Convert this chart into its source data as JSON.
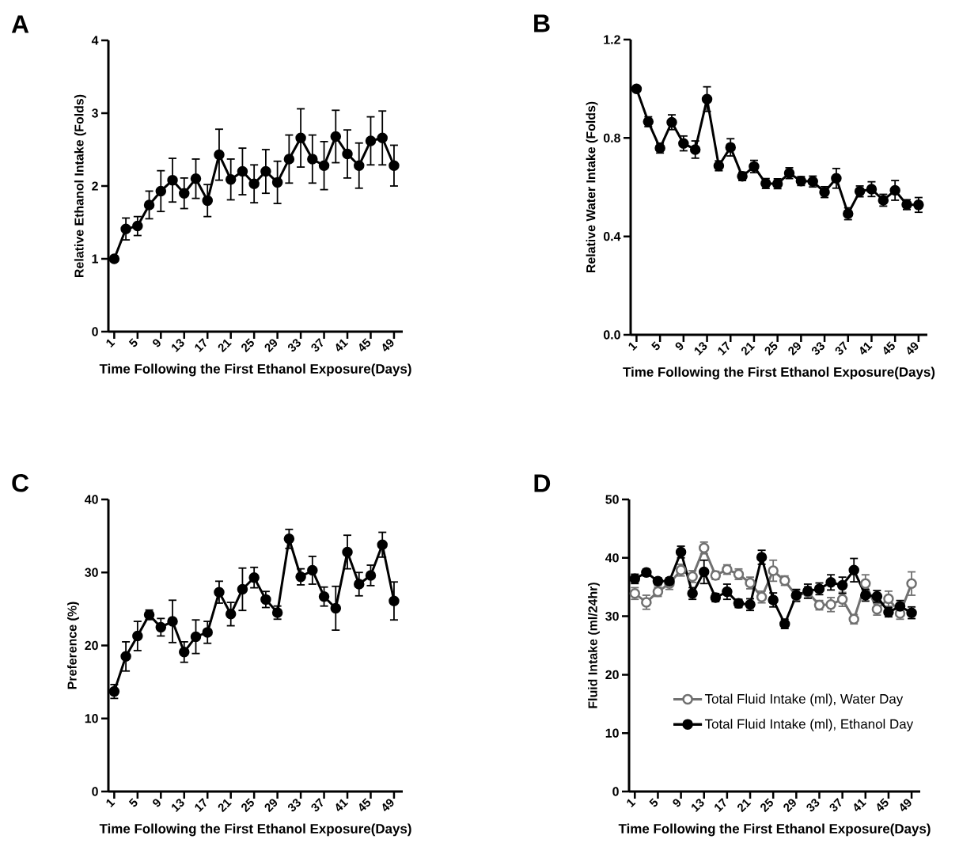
{
  "chart_data": [
    {
      "type": "line",
      "title": "A",
      "xlabel": "Time Following the First Ethanol Exposure(Days)",
      "ylabel": "Relative Ethanol Intake (Folds)",
      "x": [
        1,
        3,
        5,
        7,
        9,
        11,
        13,
        15,
        17,
        19,
        21,
        23,
        25,
        27,
        29,
        31,
        33,
        35,
        37,
        39,
        41,
        43,
        45,
        47,
        49
      ],
      "xlim": [
        0,
        50.5
      ],
      "xticks": [
        1,
        5,
        9,
        13,
        17,
        21,
        25,
        29,
        33,
        37,
        41,
        45,
        49
      ],
      "ylim": [
        0,
        4
      ],
      "yticks": [
        0,
        1,
        2,
        3,
        4
      ],
      "marker": "circle",
      "line_style": "solid",
      "series": [
        {
          "color": "#000000",
          "values": [
            1.0,
            1.41,
            1.45,
            1.74,
            1.93,
            2.08,
            1.9,
            2.1,
            1.8,
            2.43,
            2.09,
            2.2,
            2.03,
            2.2,
            2.05,
            2.37,
            2.66,
            2.37,
            2.28,
            2.68,
            2.44,
            2.28,
            2.62,
            2.66,
            2.28
          ],
          "errors": [
            null,
            0.15,
            0.13,
            0.19,
            0.28,
            0.3,
            0.21,
            0.27,
            0.22,
            0.35,
            0.28,
            0.32,
            0.26,
            0.3,
            0.29,
            0.33,
            0.4,
            0.33,
            0.33,
            0.36,
            0.33,
            0.31,
            0.33,
            0.37,
            0.28
          ]
        }
      ]
    },
    {
      "type": "line",
      "title": "B",
      "xlabel": "Time Following the First Ethanol Exposure(Days)",
      "ylabel": "Relative Water Intake (Folds)",
      "x": [
        1,
        3,
        5,
        7,
        9,
        11,
        13,
        15,
        17,
        19,
        21,
        23,
        25,
        27,
        29,
        31,
        33,
        35,
        37,
        39,
        41,
        43,
        45,
        47,
        49
      ],
      "xlim": [
        0,
        50.5
      ],
      "xticks": [
        1,
        5,
        9,
        13,
        17,
        21,
        25,
        29,
        33,
        37,
        41,
        45,
        49
      ],
      "ylim": [
        0,
        1.2
      ],
      "yticks": [
        {
          "value": 0,
          "label": "0.0"
        },
        {
          "value": 0.4,
          "label": "0.4"
        },
        {
          "value": 0.8,
          "label": "0.8"
        },
        {
          "value": 1.2,
          "label": "1.2"
        }
      ],
      "marker": "circle",
      "line_style": "solid",
      "series": [
        {
          "color": "#000000",
          "values": [
            1.0,
            0.866,
            0.759,
            0.864,
            0.778,
            0.753,
            0.958,
            0.687,
            0.762,
            0.644,
            0.684,
            0.615,
            0.614,
            0.657,
            0.625,
            0.623,
            0.58,
            0.636,
            0.492,
            0.583,
            0.592,
            0.547,
            0.587,
            0.529,
            0.528
          ],
          "errors": [
            null,
            0.02,
            0.02,
            0.03,
            0.03,
            0.035,
            0.05,
            0.02,
            0.035,
            0.017,
            0.025,
            0.02,
            0.02,
            0.022,
            0.018,
            0.022,
            0.022,
            0.04,
            0.024,
            0.022,
            0.03,
            0.024,
            0.04,
            0.02,
            0.03
          ]
        }
      ]
    },
    {
      "type": "line",
      "title": "C",
      "xlabel": "Time Following the First Ethanol Exposure(Days)",
      "ylabel": "Preference (%)",
      "x": [
        1,
        3,
        5,
        7,
        9,
        11,
        13,
        15,
        17,
        19,
        21,
        23,
        25,
        27,
        29,
        31,
        33,
        35,
        37,
        39,
        41,
        43,
        45,
        47,
        49
      ],
      "xlim": [
        0,
        50.5
      ],
      "xticks": [
        1,
        5,
        9,
        13,
        17,
        21,
        25,
        29,
        33,
        37,
        41,
        45,
        49
      ],
      "ylim": [
        0,
        40
      ],
      "yticks": [
        0,
        10,
        20,
        30,
        40
      ],
      "marker": "circle",
      "line_style": "solid",
      "series": [
        {
          "color": "#000000",
          "values": [
            13.7,
            18.5,
            21.3,
            24.2,
            22.5,
            23.3,
            19.1,
            21.2,
            21.8,
            27.3,
            24.3,
            27.7,
            29.3,
            26.3,
            24.5,
            34.6,
            29.4,
            30.3,
            26.7,
            25.1,
            32.8,
            28.4,
            29.6,
            33.8,
            26.1
          ],
          "errors": [
            0.95,
            2.0,
            2.0,
            0.65,
            1.2,
            2.9,
            1.4,
            2.3,
            1.5,
            1.5,
            1.6,
            2.9,
            1.4,
            1.1,
            0.9,
            1.3,
            1.1,
            1.9,
            1.3,
            3.0,
            2.3,
            1.6,
            1.4,
            1.7,
            2.6
          ]
        }
      ]
    },
    {
      "type": "line",
      "xlabel": "Time Following the First Ethanol Exposure(Days)",
      "ylabel": "Fluid Intake (ml/24hr)",
      "title": "D",
      "x": [
        1,
        3,
        5,
        7,
        9,
        11,
        13,
        15,
        17,
        19,
        21,
        23,
        25,
        27,
        29,
        31,
        33,
        35,
        37,
        39,
        41,
        43,
        45,
        47,
        49
      ],
      "xlim": [
        0,
        50.5
      ],
      "xticks": [
        1,
        5,
        9,
        13,
        17,
        21,
        25,
        29,
        33,
        37,
        41,
        45,
        49
      ],
      "ylim": [
        0,
        50
      ],
      "yticks": [
        0,
        10,
        20,
        30,
        40,
        50
      ],
      "marker": "circle",
      "line_style": "solid",
      "legend": "bottom right",
      "series": [
        {
          "name": "Total Fluid Intake (ml), Water Day",
          "color": "#707070",
          "values": [
            33.9,
            32.4,
            34.2,
            35.6,
            37.9,
            36.8,
            41.7,
            37.0,
            38.0,
            37.2,
            35.7,
            33.3,
            37.8,
            36.1,
            33.5,
            34.1,
            31.9,
            32.0,
            32.9,
            29.5,
            35.6,
            31.2,
            33.0,
            30.5,
            35.6
          ],
          "errors": [
            1,
            1.2,
            0.8,
            1,
            1,
            1,
            1,
            0.7,
            0.8,
            0.9,
            1,
            1,
            1.8,
            0.8,
            1,
            1,
            0.8,
            1.2,
            1.2,
            0.8,
            1.5,
            1,
            1.3,
            1,
            2
          ]
        },
        {
          "name": "Total Fluid Intake (ml), Ethanol Day",
          "color": "#000000",
          "values": [
            36.4,
            37.5,
            36.0,
            36.0,
            41.0,
            33.9,
            37.6,
            33.2,
            34.2,
            32.2,
            32.0,
            40.1,
            32.8,
            28.7,
            33.6,
            34.3,
            34.7,
            35.8,
            35.3,
            37.9,
            33.6,
            33.4,
            30.7,
            31.7,
            30.6
          ],
          "errors": [
            0.8,
            0.6,
            0.6,
            0.6,
            1,
            1,
            2,
            0.7,
            1.3,
            0.7,
            1,
            1.2,
            1.2,
            0.8,
            1,
            1.2,
            1,
            1.3,
            1.4,
            2,
            1,
            1,
            0.8,
            1,
            1
          ]
        }
      ]
    }
  ]
}
